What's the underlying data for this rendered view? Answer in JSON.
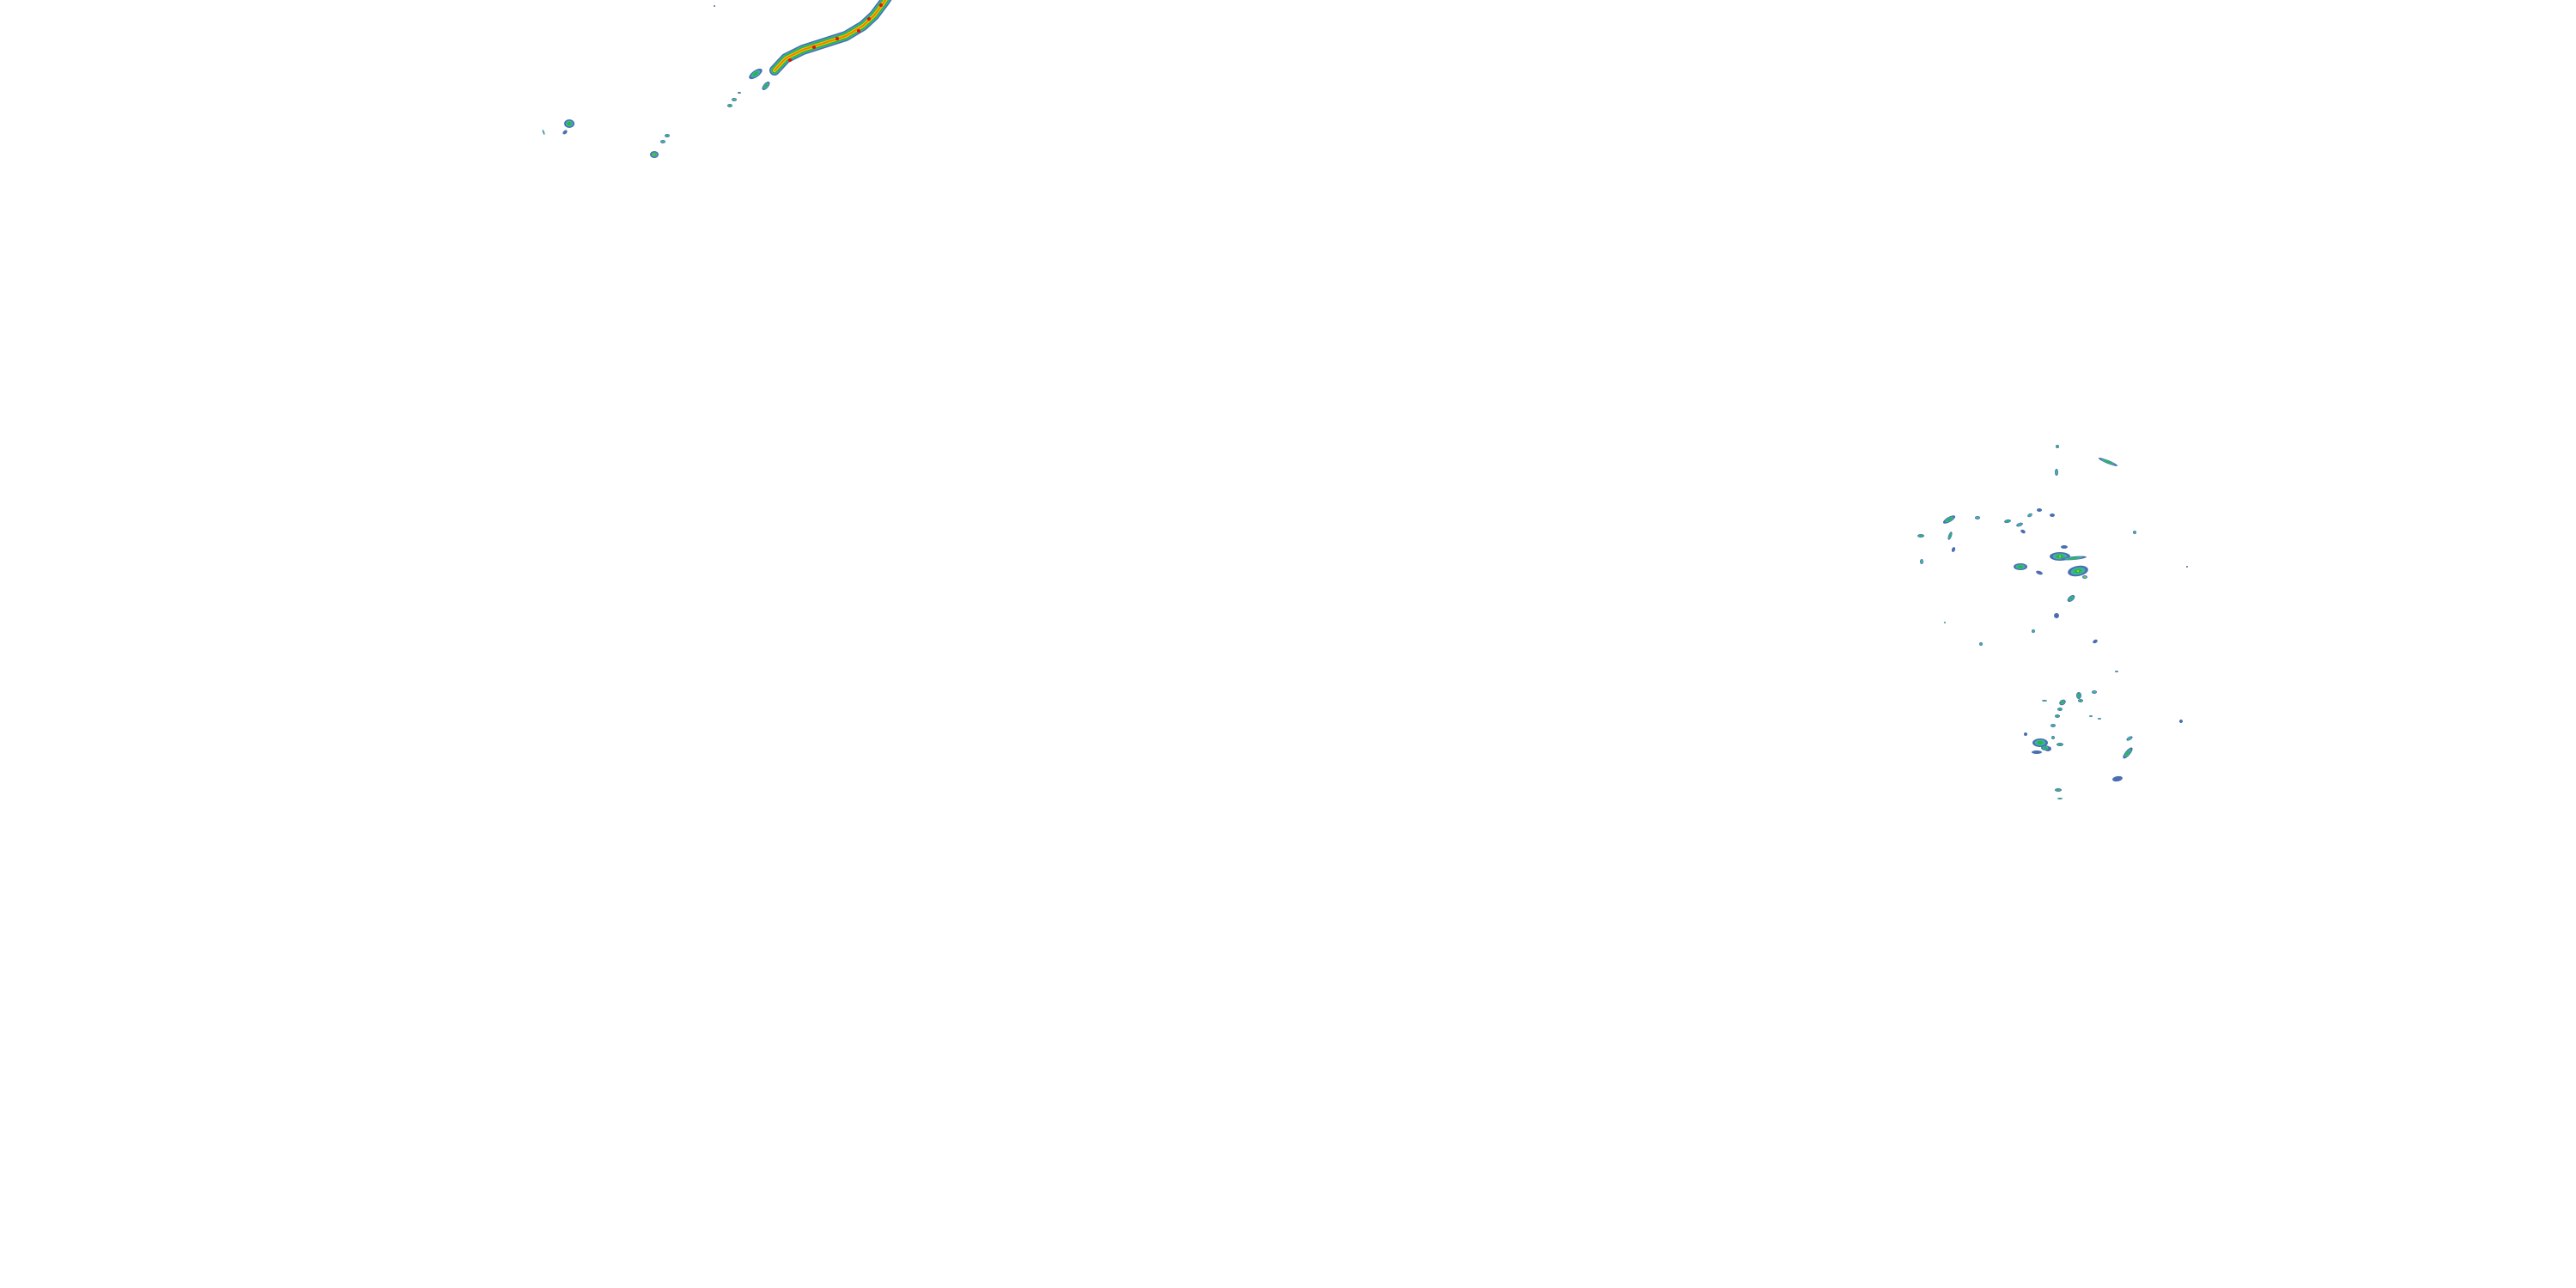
{
  "map": {
    "layer": "radar-reflectivity",
    "background": "#ffffff",
    "colors": {
      "light": "#4a6fb0",
      "light_moderate": "#3fb3a0",
      "moderate": "#22b84a",
      "heavy": "#f2d000",
      "very_heavy": "#f08000",
      "intense": "#e01010"
    }
  }
}
